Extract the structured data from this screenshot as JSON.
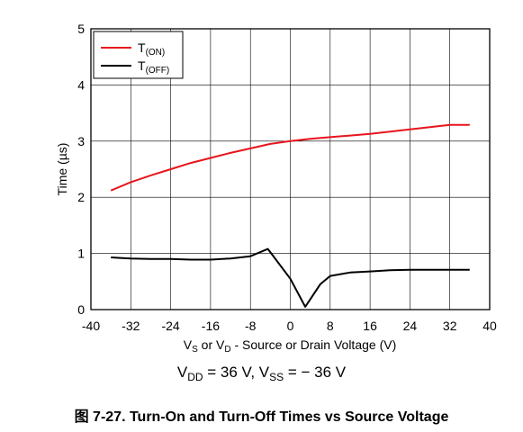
{
  "chart_data": {
    "type": "line",
    "title": "",
    "ylabel": "Time (µs)",
    "xlabel_parts": [
      "V",
      "S",
      " or V",
      "D",
      " - Source or Drain Voltage (V)"
    ],
    "xlim": [
      -40,
      40
    ],
    "ylim": [
      0,
      5
    ],
    "xticks": [
      -40,
      -32,
      -24,
      -16,
      -8,
      0,
      8,
      16,
      24,
      32,
      40
    ],
    "yticks": [
      0,
      1,
      2,
      3,
      4,
      5
    ],
    "grid": true,
    "legend_position": "top-left",
    "series": [
      {
        "name_parts": [
          "T",
          "(ON)"
        ],
        "color": "#e8141c",
        "points": [
          [
            -36,
            2.12
          ],
          [
            -32,
            2.27
          ],
          [
            -28,
            2.39
          ],
          [
            -24,
            2.5
          ],
          [
            -20,
            2.61
          ],
          [
            -16,
            2.7
          ],
          [
            -12,
            2.79
          ],
          [
            -8,
            2.87
          ],
          [
            -4,
            2.95
          ],
          [
            0,
            3.0
          ],
          [
            4,
            3.04
          ],
          [
            8,
            3.07
          ],
          [
            12,
            3.1
          ],
          [
            16,
            3.13
          ],
          [
            20,
            3.17
          ],
          [
            24,
            3.21
          ],
          [
            28,
            3.25
          ],
          [
            32,
            3.29
          ],
          [
            36,
            3.29
          ]
        ]
      },
      {
        "name_parts": [
          "T",
          "(OFF)"
        ],
        "color": "#000000",
        "points": [
          [
            -36,
            0.93
          ],
          [
            -32,
            0.91
          ],
          [
            -28,
            0.9
          ],
          [
            -24,
            0.9
          ],
          [
            -20,
            0.89
          ],
          [
            -16,
            0.89
          ],
          [
            -12,
            0.91
          ],
          [
            -8,
            0.95
          ],
          [
            -4.5,
            1.08
          ],
          [
            0,
            0.55
          ],
          [
            3,
            0.05
          ],
          [
            6,
            0.45
          ],
          [
            8,
            0.6
          ],
          [
            12,
            0.66
          ],
          [
            16,
            0.68
          ],
          [
            20,
            0.7
          ],
          [
            24,
            0.71
          ],
          [
            28,
            0.71
          ],
          [
            32,
            0.71
          ],
          [
            36,
            0.71
          ]
        ]
      }
    ]
  },
  "caption": {
    "cond_parts": [
      "V",
      "DD",
      " = 36 V, V",
      "SS",
      " =  − 36 V"
    ],
    "figure_title": "图 7-27. Turn-On and Turn-Off Times vs Source Voltage"
  }
}
